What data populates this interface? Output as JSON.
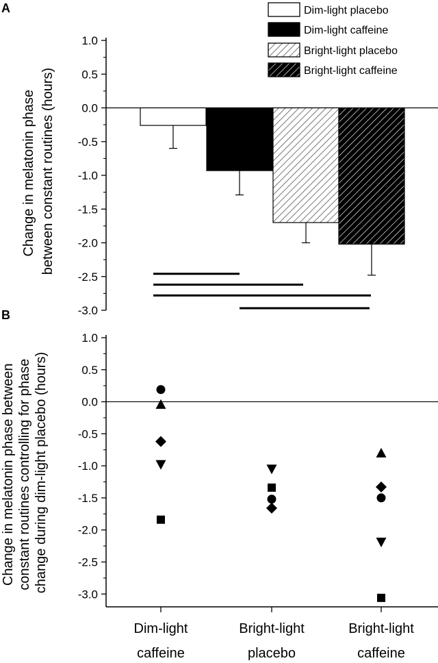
{
  "chart_data": [
    {
      "panel": "A",
      "type": "bar",
      "ylabel_lines": [
        "Change in melatonin phase",
        "between constant routines (hours)"
      ],
      "ylim": [
        -3.0,
        1.0
      ],
      "yticks": [
        "1.0",
        "0.5",
        "0.0",
        "-0.5",
        "-1.0",
        "-1.5",
        "-2.0",
        "-2.5",
        "-3.0"
      ],
      "legend": [
        {
          "label": "Dim-light placebo",
          "fill": "#ffffff",
          "pattern": "none"
        },
        {
          "label": "Dim-light caffeine",
          "fill": "#000000",
          "pattern": "none"
        },
        {
          "label": "Bright-light placebo",
          "fill": "#ffffff",
          "pattern": "hatch-light"
        },
        {
          "label": "Bright-light caffeine",
          "fill": "#000000",
          "pattern": "hatch-dark"
        }
      ],
      "bars": [
        {
          "group": "Dim-light placebo",
          "value": -0.26,
          "error": 0.34
        },
        {
          "group": "Dim-light caffeine",
          "value": -0.93,
          "error": 0.36
        },
        {
          "group": "Bright-light placebo",
          "value": -1.7,
          "error": 0.3
        },
        {
          "group": "Bright-light caffeine",
          "value": -2.02,
          "error": 0.46
        }
      ],
      "significance": [
        {
          "from": 0,
          "to": 1,
          "y": -2.46
        },
        {
          "from": 0,
          "to": 2,
          "y": -2.62
        },
        {
          "from": 0,
          "to": 3,
          "y": -2.78
        },
        {
          "from": 1,
          "to": 3,
          "y": -2.97
        }
      ]
    },
    {
      "panel": "B",
      "type": "scatter",
      "ylabel_lines": [
        "Change in melatonin phase between",
        "constant routines controlling for phase",
        "change during dim-light placebo (hours)"
      ],
      "ylim": [
        -3.2,
        1.0
      ],
      "yticks": [
        "1.0",
        "0.5",
        "0.0",
        "-0.5",
        "-1.0",
        "-1.5",
        "-2.0",
        "-2.5",
        "-3.0"
      ],
      "categories": [
        {
          "line1": "Dim-light",
          "line2": "caffeine"
        },
        {
          "line1": "Bright-light",
          "line2": "placebo"
        },
        {
          "line1": "Bright-light",
          "line2": "caffeine"
        }
      ],
      "series": [
        {
          "marker": "circle",
          "values": [
            0.19,
            -1.52,
            -1.5
          ]
        },
        {
          "marker": "triangle-up",
          "values": [
            -0.04,
            null,
            -0.8
          ]
        },
        {
          "marker": "diamond",
          "values": [
            -0.62,
            -1.66,
            -1.33
          ]
        },
        {
          "marker": "triangle-down",
          "values": [
            -0.98,
            -1.05,
            -2.19
          ]
        },
        {
          "marker": "square",
          "values": [
            -1.84,
            -1.34,
            -3.06
          ]
        }
      ]
    }
  ]
}
